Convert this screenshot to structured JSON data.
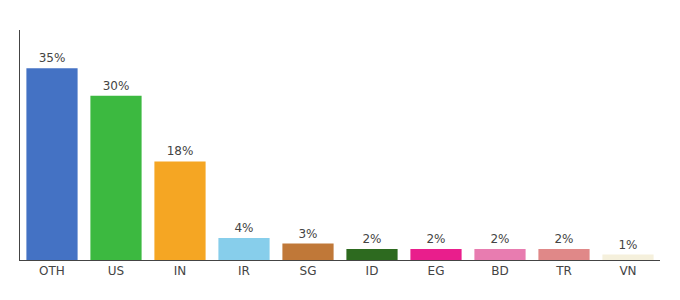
{
  "chart_data": {
    "type": "bar",
    "categories": [
      "OTH",
      "US",
      "IN",
      "IR",
      "SG",
      "ID",
      "EG",
      "BD",
      "TR",
      "VN"
    ],
    "values": [
      35,
      30,
      18,
      4,
      3,
      2,
      2,
      2,
      2,
      1
    ],
    "value_labels": [
      "35%",
      "30%",
      "18%",
      "4%",
      "3%",
      "2%",
      "2%",
      "2%",
      "2%",
      "1%"
    ],
    "colors": [
      "#4472c4",
      "#3cb940",
      "#f5a623",
      "#87ceeb",
      "#c07838",
      "#2d6a1f",
      "#e91e8c",
      "#e87cb0",
      "#e08888",
      "#f5f0dc"
    ],
    "ylim": [
      0,
      42
    ],
    "data_labels": true,
    "tick_labels": "x",
    "grid": false
  }
}
